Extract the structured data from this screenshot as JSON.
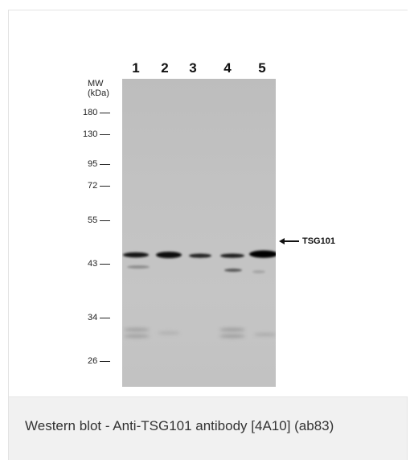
{
  "figure": {
    "lanes": [
      "1",
      "2",
      "3",
      "4",
      "5"
    ],
    "mw_label_line1": "MW",
    "mw_label_line2": "(kDa)",
    "mw_markers": [
      "180",
      "130",
      "95",
      "72",
      "55",
      "43",
      "34",
      "26"
    ],
    "band_label": "TSG101"
  },
  "caption": {
    "text": "Western blot - Anti-TSG101 antibody [4A10] (ab83)"
  }
}
